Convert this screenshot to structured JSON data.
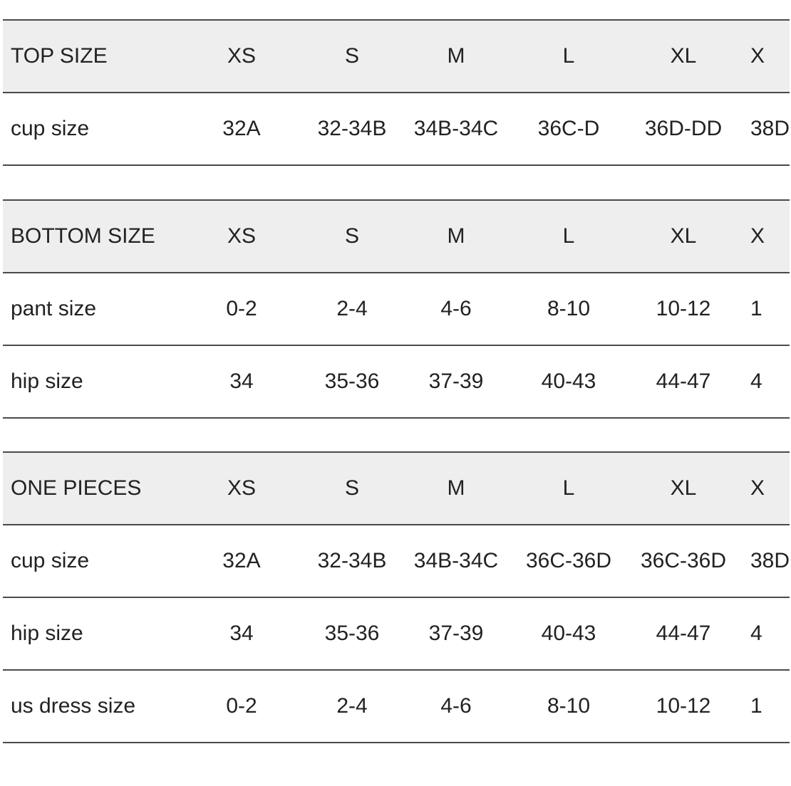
{
  "sections": [
    {
      "rows": [
        {
          "cells": [
            "TOP SIZE",
            "XS",
            "S",
            "M",
            "L",
            "XL",
            "X"
          ],
          "header": true
        },
        {
          "cells": [
            "cup size",
            "32A",
            "32-34B",
            "34B-34C",
            "36C-D",
            "36D-DD",
            "38D"
          ]
        }
      ]
    },
    {
      "rows": [
        {
          "cells": [
            "BOTTOM SIZE",
            "XS",
            "S",
            "M",
            "L",
            "XL",
            "X"
          ],
          "header": true
        },
        {
          "cells": [
            "pant size",
            "0-2",
            "2-4",
            "4-6",
            "8-10",
            "10-12",
            "1"
          ]
        },
        {
          "cells": [
            "hip size",
            "34",
            "35-36",
            "37-39",
            "40-43",
            "44-47",
            "4"
          ]
        }
      ]
    },
    {
      "rows": [
        {
          "cells": [
            "ONE PIECES",
            "XS",
            "S",
            "M",
            "L",
            "XL",
            "X"
          ],
          "header": true
        },
        {
          "cells": [
            "cup size",
            "32A",
            "32-34B",
            "34B-34C",
            "36C-36D",
            "36C-36D",
            "38D"
          ]
        },
        {
          "cells": [
            "hip size",
            "34",
            "35-36",
            "37-39",
            "40-43",
            "44-47",
            "4"
          ]
        },
        {
          "cells": [
            "us dress size",
            "0-2",
            "2-4",
            "4-6",
            "8-10",
            "10-12",
            "1"
          ]
        }
      ]
    }
  ],
  "colors": {
    "header_bg": "#eeeeee",
    "rule": "#4a4a4a",
    "text": "#222222"
  }
}
